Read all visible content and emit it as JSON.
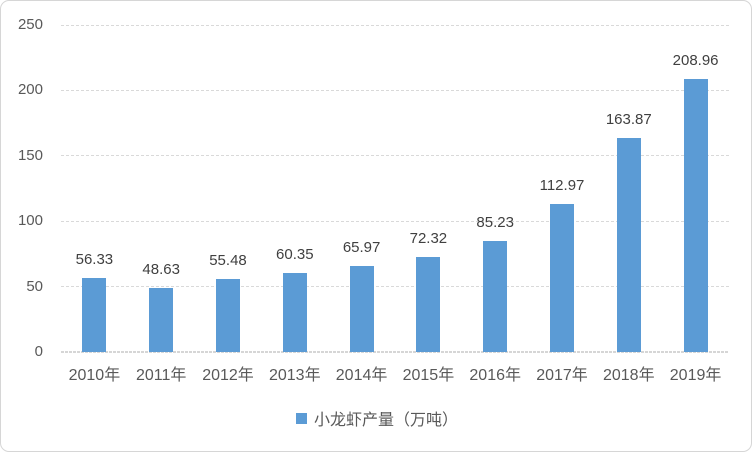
{
  "chart_data": {
    "type": "bar",
    "categories": [
      "2010年",
      "2011年",
      "2012年",
      "2013年",
      "2014年",
      "2015年",
      "2016年",
      "2017年",
      "2018年",
      "2019年"
    ],
    "values": [
      56.33,
      48.63,
      55.48,
      60.35,
      65.97,
      72.32,
      85.23,
      112.97,
      163.87,
      208.96
    ],
    "value_labels": [
      "56.33",
      "48.63",
      "55.48",
      "60.35",
      "65.97",
      "72.32",
      "85.23",
      "112.97",
      "163.87",
      "208.96"
    ],
    "series": [
      {
        "name": "小龙虾产量（万吨）",
        "values": [
          56.33,
          48.63,
          55.48,
          60.35,
          65.97,
          72.32,
          85.23,
          112.97,
          163.87,
          208.96
        ]
      }
    ],
    "title": "",
    "xlabel": "",
    "ylabel": "",
    "ylim": [
      0,
      250
    ],
    "yticks": [
      0,
      50,
      100,
      150,
      200,
      250
    ],
    "ytick_labels": [
      "0",
      "50",
      "100",
      "150",
      "200",
      "250"
    ],
    "grid": true,
    "gridline_style": "dashed",
    "legend": "小龙虾产量（万吨）",
    "legend_position": "bottom-center",
    "colors": {
      "bar": "#5b9bd5",
      "gridline": "#d9d9d9",
      "axis_line": "#d6d6d6",
      "axis_text": "#595959",
      "data_label_text": "#404040",
      "border": "#d6d6d6",
      "background": "#ffffff"
    }
  }
}
